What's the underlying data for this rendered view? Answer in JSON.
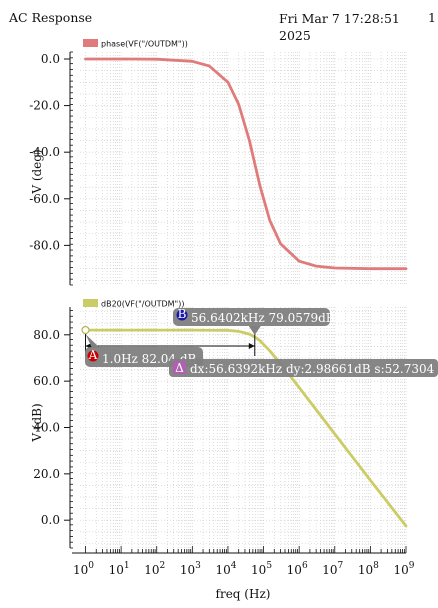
{
  "header": {
    "title": "AC Response",
    "date_line1": "Fri Mar 7 17:28:51",
    "date_line2": "2025",
    "page_number": "1"
  },
  "colors": {
    "phase_trace": "#e07b7b",
    "db_trace": "#cccc66",
    "grid": "#c8c8c8",
    "annotation_bg": "#808080",
    "marker_a": "#cc0000",
    "marker_b": "#1a1aa6",
    "marker_delta": "#b060b0"
  },
  "chart_data": [
    {
      "type": "line",
      "legend": "phase(VF(\"/OUTDM\"))",
      "ylabel": "V (deg)",
      "xscale": "log",
      "xlim": [
        0.7,
        1000000000
      ],
      "ylim": [
        -97,
        3
      ],
      "yticks": [
        0,
        -20,
        -40,
        -60,
        -80
      ],
      "ytick_labels": [
        "0.0",
        "-20.0",
        "-40.0",
        "-60.0",
        "-80.0"
      ],
      "grid": true,
      "series": [
        {
          "name": "phase(VF(\"/OUTDM\"))",
          "x": [
            1,
            10,
            100,
            1000,
            3000,
            10000,
            20000,
            40000,
            56640,
            80000,
            150000,
            300000,
            1000000,
            3000000,
            10000000,
            100000000,
            1000000000
          ],
          "y": [
            0,
            0,
            -0.1,
            -1,
            -3,
            -10,
            -19.5,
            -35,
            -45,
            -54.7,
            -69.3,
            -79.3,
            -86.8,
            -88.9,
            -89.7,
            -90,
            -90
          ]
        }
      ]
    },
    {
      "type": "line",
      "legend": "dB20(VF(\"/OUTDM\"))",
      "ylabel": "V (dB)",
      "xlabel": "freq (Hz)",
      "xscale": "log",
      "xlim": [
        0.7,
        1000000000
      ],
      "ylim": [
        -12,
        92
      ],
      "yticks": [
        80,
        60,
        40,
        20,
        0
      ],
      "ytick_labels": [
        "80.0",
        "60.0",
        "40.0",
        "20.0",
        "0.0"
      ],
      "xticks": [
        1,
        10,
        100,
        1000,
        10000,
        100000,
        1000000,
        10000000,
        100000000,
        1000000000
      ],
      "xtick_bases": [
        "10",
        "10",
        "10",
        "10",
        "10",
        "10",
        "10",
        "10",
        "10",
        "10"
      ],
      "xtick_exps": [
        "0",
        "1",
        "2",
        "3",
        "4",
        "5",
        "6",
        "7",
        "8",
        "9"
      ],
      "grid": true,
      "series": [
        {
          "name": "dB20(VF(\"/OUTDM\"))",
          "x": [
            1,
            10,
            100,
            1000,
            10000,
            20000,
            40000,
            56640,
            80000,
            150000,
            300000,
            1000000,
            10000000,
            100000000,
            1000000000
          ],
          "y": [
            82.04,
            82.04,
            82.04,
            82.04,
            81.9,
            81.5,
            80.3,
            79.06,
            77.4,
            73.1,
            67.5,
            57.2,
            37.2,
            17.2,
            -2.5
          ]
        }
      ],
      "markers": [
        {
          "id": "A",
          "x": 1,
          "y": 82.04,
          "label": "1.0Hz 82.04 dB"
        },
        {
          "id": "B",
          "x": 56640.2,
          "y": 79.0579,
          "label": "56.6402kHz 79.0579dB"
        }
      ],
      "delta": {
        "label": "dx:56.6392kHz dy:2.98661dB s:52.7304"
      }
    }
  ]
}
